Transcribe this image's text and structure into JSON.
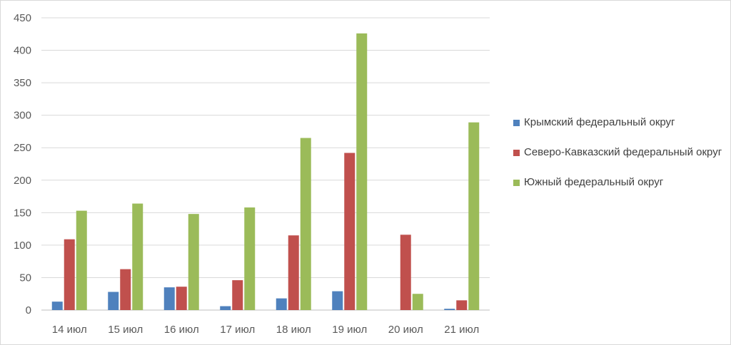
{
  "chart_data": {
    "type": "bar",
    "title": "",
    "xlabel": "",
    "ylabel": "",
    "ylim": [
      0,
      450
    ],
    "yticks": [
      0,
      50,
      100,
      150,
      200,
      250,
      300,
      350,
      400,
      450
    ],
    "grid": true,
    "legend_position": "right",
    "categories": [
      "14 июл",
      "15 июл",
      "16 июл",
      "17 июл",
      "18 июл",
      "19 июл",
      "20 июл",
      "21 июл"
    ],
    "series": [
      {
        "name": "Крымский федеральный округ",
        "color": "#4f81bd",
        "values": [
          13,
          28,
          35,
          6,
          18,
          29,
          0,
          2
        ]
      },
      {
        "name": "Северо-Кавказский федеральный округ",
        "color": "#c0504d",
        "values": [
          109,
          63,
          36,
          46,
          115,
          242,
          116,
          15
        ]
      },
      {
        "name": "Южный федеральный округ",
        "color": "#9bbb59",
        "values": [
          153,
          164,
          148,
          158,
          265,
          426,
          25,
          289
        ]
      }
    ]
  }
}
